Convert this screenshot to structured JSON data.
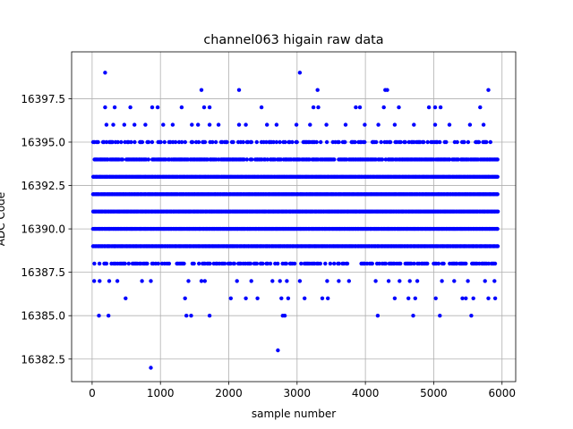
{
  "chart_data": {
    "type": "scatter",
    "title": "channel063 higain raw data",
    "xlabel": "sample number",
    "ylabel": "ADC Code",
    "xlim": [
      -300,
      6200
    ],
    "ylim": [
      16381.2,
      16400.2
    ],
    "xticks": [
      0,
      1000,
      2000,
      3000,
      4000,
      5000,
      6000
    ],
    "yticks": [
      16382.5,
      16385.0,
      16387.5,
      16390.0,
      16392.5,
      16395.0,
      16397.5
    ],
    "xtick_labels": [
      "0",
      "1000",
      "2000",
      "3000",
      "4000",
      "5000",
      "6000"
    ],
    "ytick_labels": [
      "16382.5",
      "16385.0",
      "16387.5",
      "16390.0",
      "16392.5",
      "16395.0",
      "16397.5"
    ],
    "grid": true,
    "marker_color": "#0000ff",
    "sample_count": 6000,
    "dense_levels": [
      16388,
      16389,
      16390,
      16391,
      16392,
      16393,
      16394,
      16395
    ],
    "sparse_points": [
      {
        "x": 190,
        "y": 16399
      },
      {
        "x": 3040,
        "y": 16399
      },
      {
        "x": 1600,
        "y": 16398
      },
      {
        "x": 2150,
        "y": 16398
      },
      {
        "x": 3300,
        "y": 16398
      },
      {
        "x": 4290,
        "y": 16398
      },
      {
        "x": 4320,
        "y": 16398
      },
      {
        "x": 5800,
        "y": 16398
      },
      {
        "x": 190,
        "y": 16397
      },
      {
        "x": 330,
        "y": 16397
      },
      {
        "x": 560,
        "y": 16397
      },
      {
        "x": 880,
        "y": 16397
      },
      {
        "x": 960,
        "y": 16397
      },
      {
        "x": 1310,
        "y": 16397
      },
      {
        "x": 1640,
        "y": 16397
      },
      {
        "x": 1720,
        "y": 16397
      },
      {
        "x": 2480,
        "y": 16397
      },
      {
        "x": 3240,
        "y": 16397
      },
      {
        "x": 3310,
        "y": 16397
      },
      {
        "x": 3860,
        "y": 16397
      },
      {
        "x": 3920,
        "y": 16397
      },
      {
        "x": 4270,
        "y": 16397
      },
      {
        "x": 4490,
        "y": 16397
      },
      {
        "x": 4930,
        "y": 16397
      },
      {
        "x": 5020,
        "y": 16397
      },
      {
        "x": 5100,
        "y": 16397
      },
      {
        "x": 5680,
        "y": 16397
      },
      {
        "x": 210,
        "y": 16396
      },
      {
        "x": 310,
        "y": 16396
      },
      {
        "x": 470,
        "y": 16396
      },
      {
        "x": 620,
        "y": 16396
      },
      {
        "x": 780,
        "y": 16396
      },
      {
        "x": 1040,
        "y": 16396
      },
      {
        "x": 1180,
        "y": 16396
      },
      {
        "x": 1460,
        "y": 16396
      },
      {
        "x": 1550,
        "y": 16396
      },
      {
        "x": 1720,
        "y": 16396
      },
      {
        "x": 1850,
        "y": 16396
      },
      {
        "x": 2150,
        "y": 16396
      },
      {
        "x": 2250,
        "y": 16396
      },
      {
        "x": 2560,
        "y": 16396
      },
      {
        "x": 2700,
        "y": 16396
      },
      {
        "x": 2990,
        "y": 16396
      },
      {
        "x": 3190,
        "y": 16396
      },
      {
        "x": 3430,
        "y": 16396
      },
      {
        "x": 3710,
        "y": 16396
      },
      {
        "x": 3990,
        "y": 16396
      },
      {
        "x": 4190,
        "y": 16396
      },
      {
        "x": 4430,
        "y": 16396
      },
      {
        "x": 4710,
        "y": 16396
      },
      {
        "x": 5020,
        "y": 16396
      },
      {
        "x": 5230,
        "y": 16396
      },
      {
        "x": 5530,
        "y": 16396
      },
      {
        "x": 5730,
        "y": 16396
      },
      {
        "x": 30,
        "y": 16387
      },
      {
        "x": 110,
        "y": 16387
      },
      {
        "x": 250,
        "y": 16387
      },
      {
        "x": 370,
        "y": 16387
      },
      {
        "x": 730,
        "y": 16387
      },
      {
        "x": 860,
        "y": 16387
      },
      {
        "x": 1410,
        "y": 16387
      },
      {
        "x": 1600,
        "y": 16387
      },
      {
        "x": 1650,
        "y": 16387
      },
      {
        "x": 2120,
        "y": 16387
      },
      {
        "x": 2330,
        "y": 16387
      },
      {
        "x": 2640,
        "y": 16387
      },
      {
        "x": 2750,
        "y": 16387
      },
      {
        "x": 2850,
        "y": 16387
      },
      {
        "x": 3040,
        "y": 16387
      },
      {
        "x": 3440,
        "y": 16387
      },
      {
        "x": 3610,
        "y": 16387
      },
      {
        "x": 3760,
        "y": 16387
      },
      {
        "x": 4150,
        "y": 16387
      },
      {
        "x": 4340,
        "y": 16387
      },
      {
        "x": 4500,
        "y": 16387
      },
      {
        "x": 4650,
        "y": 16387
      },
      {
        "x": 4760,
        "y": 16387
      },
      {
        "x": 5120,
        "y": 16387
      },
      {
        "x": 5300,
        "y": 16387
      },
      {
        "x": 5500,
        "y": 16387
      },
      {
        "x": 5750,
        "y": 16387
      },
      {
        "x": 5890,
        "y": 16387
      },
      {
        "x": 490,
        "y": 16386
      },
      {
        "x": 1360,
        "y": 16386
      },
      {
        "x": 2030,
        "y": 16386
      },
      {
        "x": 2250,
        "y": 16386
      },
      {
        "x": 2420,
        "y": 16386
      },
      {
        "x": 2770,
        "y": 16386
      },
      {
        "x": 2870,
        "y": 16386
      },
      {
        "x": 3110,
        "y": 16386
      },
      {
        "x": 3370,
        "y": 16386
      },
      {
        "x": 3450,
        "y": 16386
      },
      {
        "x": 4430,
        "y": 16386
      },
      {
        "x": 4630,
        "y": 16386
      },
      {
        "x": 4730,
        "y": 16386
      },
      {
        "x": 5030,
        "y": 16386
      },
      {
        "x": 5420,
        "y": 16386
      },
      {
        "x": 5470,
        "y": 16386
      },
      {
        "x": 5580,
        "y": 16386
      },
      {
        "x": 5800,
        "y": 16386
      },
      {
        "x": 5900,
        "y": 16386
      },
      {
        "x": 100,
        "y": 16385
      },
      {
        "x": 240,
        "y": 16385
      },
      {
        "x": 1380,
        "y": 16385
      },
      {
        "x": 1450,
        "y": 16385
      },
      {
        "x": 1720,
        "y": 16385
      },
      {
        "x": 2790,
        "y": 16385
      },
      {
        "x": 2820,
        "y": 16385
      },
      {
        "x": 4180,
        "y": 16385
      },
      {
        "x": 4700,
        "y": 16385
      },
      {
        "x": 5090,
        "y": 16385
      },
      {
        "x": 5550,
        "y": 16385
      },
      {
        "x": 2720,
        "y": 16383
      },
      {
        "x": 860,
        "y": 16382
      }
    ]
  }
}
